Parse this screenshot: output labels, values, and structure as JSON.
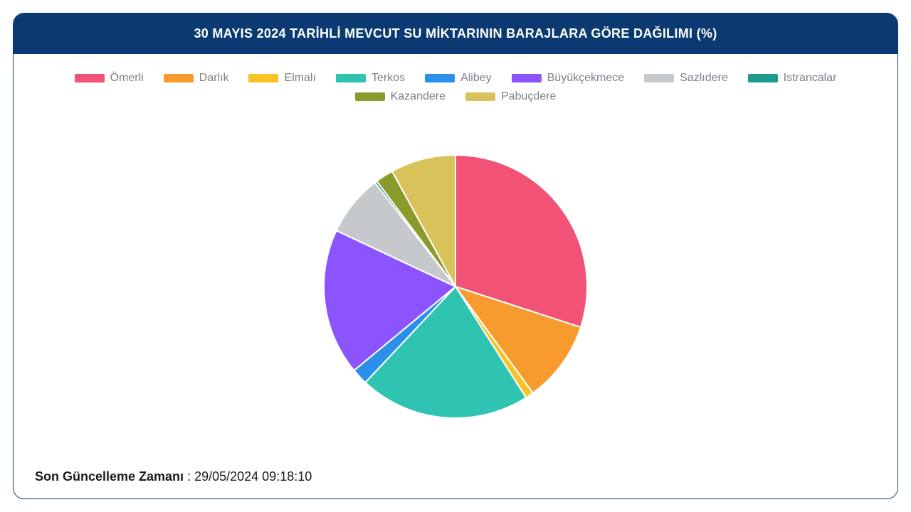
{
  "card": {
    "title": "30 MAYIS 2024 TARİHLİ MEVCUT SU MİKTARININ BARAJLARA GÖRE DAĞILIMI (%)",
    "header_bg": "#0b3a72",
    "header_text_color": "#ffffff",
    "border_color": "#0b3a72",
    "body_bg": "#ffffff"
  },
  "legend": {
    "text_color": "#7a7f87",
    "font_size": 16,
    "swatch_width": 42,
    "swatch_height": 12
  },
  "chart": {
    "type": "pie",
    "diameter": 370,
    "slice_gap_deg": 1.2,
    "slice_stroke": "#ffffff",
    "slice_stroke_width": 2,
    "start_angle_deg": -90,
    "series": [
      {
        "label": "Ömerli",
        "value": 30.0,
        "color": "#f15276"
      },
      {
        "label": "Darlık",
        "value": 10.0,
        "color": "#f79b2e"
      },
      {
        "label": "Elmalı",
        "value": 1.0,
        "color": "#f7c325"
      },
      {
        "label": "Terkos",
        "value": 21.0,
        "color": "#2fc4b2"
      },
      {
        "label": "Alibey",
        "value": 2.0,
        "color": "#2b90e9"
      },
      {
        "label": "Büyükçekmece",
        "value": 18.0,
        "color": "#8c54ff"
      },
      {
        "label": "Sazlıdere",
        "value": 7.5,
        "color": "#c6c9cc"
      },
      {
        "label": "Istrancalar",
        "value": 0.3,
        "color": "#1f9b8e"
      },
      {
        "label": "Kazandere",
        "value": 2.2,
        "color": "#8b9b2b"
      },
      {
        "label": "Pabuçdere",
        "value": 8.0,
        "color": "#d9c25a"
      }
    ]
  },
  "footer": {
    "label": "Son Güncelleme Zamanı",
    "separator": " : ",
    "value": "29/05/2024 09:18:10"
  }
}
